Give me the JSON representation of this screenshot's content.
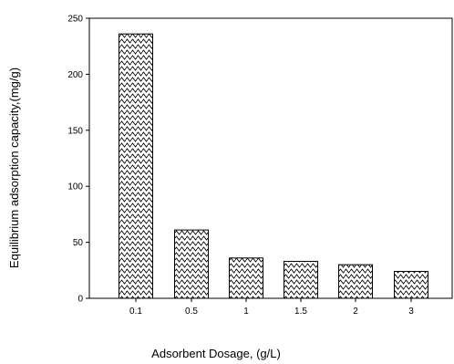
{
  "chart_data": {
    "type": "bar",
    "categories": [
      "0.1",
      "0.5",
      "1",
      "1.5",
      "2",
      "3"
    ],
    "values": [
      236,
      61,
      36,
      33,
      30,
      24
    ],
    "xlabel": "Adsorbent Dosage, (g/L)",
    "ylabel": "Equilibrium adsorption capacity,(mg/g)",
    "ylim": [
      0,
      250
    ],
    "yticks": [
      0,
      50,
      100,
      150,
      200,
      250
    ],
    "bar_fill": "zigzag-hatch",
    "grid": false,
    "colors": {
      "bar_stroke": "#000000",
      "hatch": "#000000",
      "background": "#ffffff"
    }
  }
}
